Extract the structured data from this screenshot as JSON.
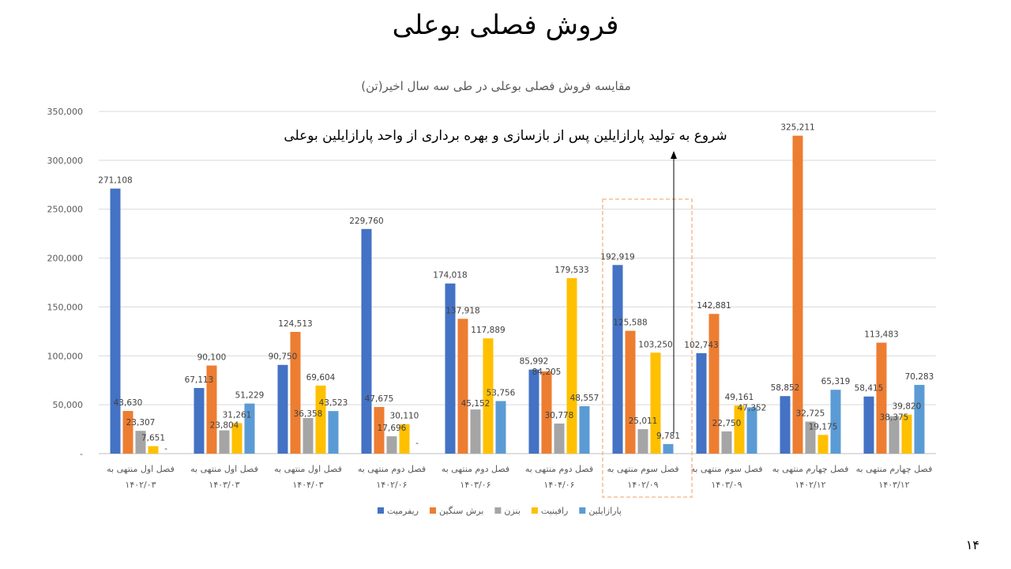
{
  "slide": {
    "title": "فروش فصلی بوعلی",
    "page_number": "۱۴"
  },
  "chart_data": {
    "type": "bar",
    "title": "مقایسه فروش فصلی بوعلی در طی سه سال اخیر(تن)",
    "annotation": "شروع به تولید پارازایلین پس از بازسازی و بهره برداری از واحد پارازایلین بوعلی",
    "highlighted_category": "فصل سوم منتهی به ۱۴۰۲/۰۹",
    "categories": [
      [
        "فصل اول منتهی به",
        "۱۴۰۲/۰۳"
      ],
      [
        "فصل اول منتهی به",
        "۱۴۰۳/۰۳"
      ],
      [
        "فصل اول منتهی به",
        "۱۴۰۴/۰۳"
      ],
      [
        "فصل دوم منتهی به",
        "۱۴۰۲/۰۶"
      ],
      [
        "فصل دوم منتهی به",
        "۱۴۰۳/۰۶"
      ],
      [
        "فصل دوم منتهی به",
        "۱۴۰۴/۰۶"
      ],
      [
        "فصل سوم منتهی به",
        "۱۴۰۲/۰۹"
      ],
      [
        "فصل سوم منتهی به",
        "۱۴۰۳/۰۹"
      ],
      [
        "فصل چهارم منتهی به",
        "۱۴۰۲/۱۲"
      ],
      [
        "فصل چهارم منتهی به",
        "۱۴۰۳/۱۲"
      ]
    ],
    "series": [
      {
        "name": "ریفرمیت",
        "color": "#4472C4",
        "values": [
          271108,
          67113,
          90750,
          229760,
          174018,
          85992,
          192919,
          102743,
          58852,
          58415
        ]
      },
      {
        "name": "برش سنگین",
        "color": "#ED7D31",
        "values": [
          43630,
          90100,
          124513,
          47675,
          137918,
          84205,
          125588,
          142881,
          325211,
          113483
        ]
      },
      {
        "name": "بنزن",
        "color": "#A5A5A5",
        "values": [
          23307,
          23804,
          36358,
          17696,
          45152,
          30778,
          25011,
          22750,
          32725,
          38375
        ]
      },
      {
        "name": "رافینیت",
        "color": "#FFC000",
        "values": [
          7651,
          31261,
          69604,
          30110,
          117889,
          179533,
          103250,
          49161,
          19175,
          39820
        ]
      },
      {
        "name": "پارازایلین",
        "color": "#5B9BD5",
        "values": [
          null,
          51229,
          43523,
          null,
          53756,
          48557,
          9781,
          47352,
          65319,
          70283
        ]
      }
    ],
    "ylim": [
      0,
      350000
    ],
    "yticks": [
      "-",
      "50,000",
      "100,000",
      "150,000",
      "200,000",
      "250,000",
      "300,000",
      "350,000"
    ],
    "grid": true,
    "legend": "bottom"
  }
}
